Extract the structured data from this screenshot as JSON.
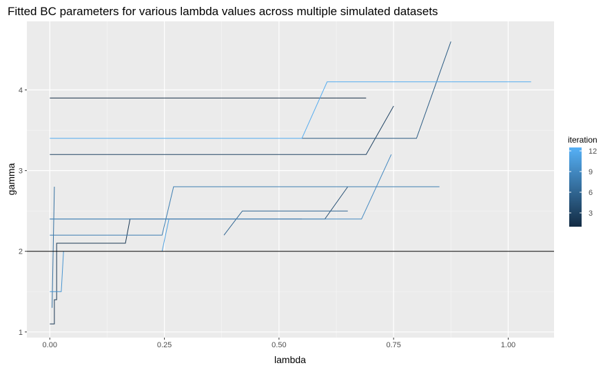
{
  "chart_data": {
    "type": "line",
    "title": "Fitted BC parameters for various lambda values across multiple simulated datasets",
    "xlabel": "lambda",
    "ylabel": "gamma",
    "xlim": [
      -0.05,
      1.1
    ],
    "ylim": [
      0.93,
      4.85
    ],
    "x_ticks": [
      0.0,
      0.25,
      0.5,
      0.75,
      1.0
    ],
    "x_tick_labels": [
      "0.00",
      "0.25",
      "0.50",
      "0.75",
      "1.00"
    ],
    "y_ticks": [
      1,
      2,
      3,
      4
    ],
    "y_tick_labels": [
      "1",
      "2",
      "3",
      "4"
    ],
    "grid": true,
    "hline": 2,
    "legend": {
      "title": "iteration",
      "position": "right",
      "type": "colorbar",
      "range": [
        1,
        12.5
      ],
      "ticks": [
        3,
        6,
        9,
        12
      ],
      "tick_labels": [
        "3",
        "6",
        "9",
        "12"
      ],
      "low_color": "#132b43",
      "high_color": "#56b1f7"
    },
    "series": [
      {
        "iteration": 1,
        "points": [
          [
            0.0,
            3.9
          ],
          [
            0.69,
            3.9
          ]
        ]
      },
      {
        "iteration": 2,
        "points": [
          [
            0.0,
            1.1
          ],
          [
            0.01,
            1.1
          ],
          [
            0.01,
            1.4
          ],
          [
            0.015,
            1.4
          ],
          [
            0.015,
            2.1
          ],
          [
            0.165,
            2.1
          ],
          [
            0.175,
            2.4
          ],
          [
            0.55,
            2.4
          ]
        ]
      },
      {
        "iteration": 3,
        "points": [
          [
            0.0,
            3.2
          ],
          [
            0.69,
            3.2
          ],
          [
            0.75,
            3.8
          ]
        ]
      },
      {
        "iteration": 4,
        "points": [
          [
            0.0,
            2.4
          ],
          [
            0.6,
            2.4
          ],
          [
            0.65,
            2.8
          ]
        ]
      },
      {
        "iteration": 5,
        "points": [
          [
            0.55,
            3.4
          ],
          [
            0.8,
            3.4
          ],
          [
            0.875,
            4.6
          ]
        ]
      },
      {
        "iteration": 6,
        "points": [
          [
            0.38,
            2.2
          ],
          [
            0.42,
            2.5
          ],
          [
            0.65,
            2.5
          ]
        ]
      },
      {
        "iteration": 7,
        "points": [
          [
            0.005,
            1.3
          ],
          [
            0.01,
            2.8
          ]
        ]
      },
      {
        "iteration": 8,
        "points": [
          [
            0.0,
            2.2
          ],
          [
            0.245,
            2.2
          ],
          [
            0.27,
            2.8
          ],
          [
            0.85,
            2.8
          ]
        ]
      },
      {
        "iteration": 9,
        "points": [
          [
            0.0,
            2.4
          ],
          [
            0.68,
            2.4
          ],
          [
            0.745,
            3.2
          ]
        ]
      },
      {
        "iteration": 10,
        "points": [
          [
            0.0,
            1.5
          ],
          [
            0.025,
            1.5
          ],
          [
            0.03,
            2.0
          ]
        ]
      },
      {
        "iteration": 11,
        "points": [
          [
            0.245,
            2.0
          ],
          [
            0.26,
            2.4
          ]
        ]
      },
      {
        "iteration": 12,
        "points": [
          [
            0.0,
            3.4
          ],
          [
            0.55,
            3.4
          ],
          [
            0.605,
            4.1
          ],
          [
            1.05,
            4.1
          ]
        ]
      }
    ]
  }
}
